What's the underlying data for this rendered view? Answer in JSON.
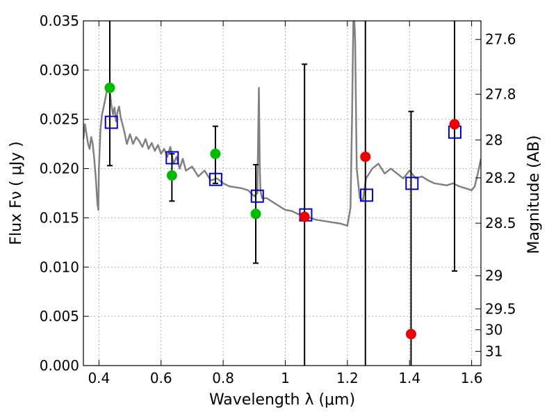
{
  "chart_data": {
    "type": "scatter",
    "title": "",
    "xlabel": "Wavelength  λ (μm)",
    "ylabel": "Flux  Fν  ( μJy )",
    "y2label": "Magnitude (AB)",
    "xlim": [
      0.35,
      1.63
    ],
    "ylim": [
      0.0,
      0.035
    ],
    "grid": true,
    "x_ticks": [
      {
        "value": 0.4,
        "label": "0.4"
      },
      {
        "value": 0.6,
        "label": "0.6"
      },
      {
        "value": 0.8,
        "label": "0.8"
      },
      {
        "value": 1.0,
        "label": "1"
      },
      {
        "value": 1.2,
        "label": "1.2"
      },
      {
        "value": 1.4,
        "label": "1.4"
      },
      {
        "value": 1.6,
        "label": "1.6"
      }
    ],
    "y_ticks": [
      {
        "value": 0.0,
        "label": "0.000"
      },
      {
        "value": 0.005,
        "label": "0.005"
      },
      {
        "value": 0.01,
        "label": "0.010"
      },
      {
        "value": 0.015,
        "label": "0.015"
      },
      {
        "value": 0.02,
        "label": "0.020"
      },
      {
        "value": 0.025,
        "label": "0.025"
      },
      {
        "value": 0.03,
        "label": "0.030"
      },
      {
        "value": 0.035,
        "label": "0.035"
      }
    ],
    "y2_ticks": [
      {
        "value": 27.6,
        "label": "27.6"
      },
      {
        "value": 27.8,
        "label": "27.8"
      },
      {
        "value": 28.0,
        "label": "28"
      },
      {
        "value": 28.2,
        "label": "28.2"
      },
      {
        "value": 28.5,
        "label": "28.5"
      },
      {
        "value": 29.0,
        "label": "29"
      },
      {
        "value": 29.5,
        "label": "29.5"
      },
      {
        "value": 30.0,
        "label": "30"
      },
      {
        "value": 31.0,
        "label": "31"
      }
    ],
    "colors": {
      "template": "#808080",
      "model_photometry": "#0000cc",
      "observed_green": "#00bb00",
      "observed_red": "#ee0000",
      "error_bar": "#000000",
      "grid": "#b0b0b0"
    },
    "template_spectrum": {
      "x": [
        0.35,
        0.355,
        0.36,
        0.365,
        0.37,
        0.375,
        0.38,
        0.385,
        0.39,
        0.395,
        0.398,
        0.4,
        0.405,
        0.41,
        0.415,
        0.42,
        0.425,
        0.43,
        0.435,
        0.44,
        0.445,
        0.45,
        0.455,
        0.46,
        0.465,
        0.47,
        0.48,
        0.49,
        0.5,
        0.51,
        0.52,
        0.53,
        0.54,
        0.55,
        0.56,
        0.57,
        0.58,
        0.59,
        0.6,
        0.61,
        0.62,
        0.63,
        0.64,
        0.65,
        0.66,
        0.67,
        0.68,
        0.7,
        0.72,
        0.74,
        0.76,
        0.78,
        0.8,
        0.82,
        0.84,
        0.86,
        0.88,
        0.9,
        0.91,
        0.915,
        0.918,
        0.92,
        0.925,
        0.94,
        0.96,
        0.98,
        1.0,
        1.02,
        1.04,
        1.06,
        1.08,
        1.1,
        1.12,
        1.14,
        1.16,
        1.18,
        1.2,
        1.21,
        1.215,
        1.22,
        1.225,
        1.228,
        1.23,
        1.24,
        1.25,
        1.26,
        1.28,
        1.3,
        1.32,
        1.34,
        1.36,
        1.38,
        1.4,
        1.42,
        1.44,
        1.46,
        1.48,
        1.5,
        1.52,
        1.54,
        1.56,
        1.58,
        1.6,
        1.61,
        1.62,
        1.63
      ],
      "y": [
        0.023,
        0.0245,
        0.0235,
        0.0225,
        0.022,
        0.0232,
        0.0225,
        0.021,
        0.019,
        0.0165,
        0.0158,
        0.02,
        0.024,
        0.0255,
        0.0262,
        0.027,
        0.0278,
        0.0285,
        0.0279,
        0.0265,
        0.0255,
        0.0262,
        0.0248,
        0.0258,
        0.0263,
        0.0252,
        0.024,
        0.0225,
        0.0235,
        0.0225,
        0.0232,
        0.0228,
        0.0222,
        0.023,
        0.022,
        0.0226,
        0.0218,
        0.0224,
        0.0215,
        0.022,
        0.0212,
        0.0222,
        0.0205,
        0.0212,
        0.02,
        0.021,
        0.0198,
        0.0202,
        0.0192,
        0.0198,
        0.0188,
        0.019,
        0.0185,
        0.0182,
        0.0181,
        0.018,
        0.0178,
        0.0172,
        0.0175,
        0.0282,
        0.02,
        0.0178,
        0.017,
        0.017,
        0.0166,
        0.0162,
        0.0158,
        0.0157,
        0.0154,
        0.0152,
        0.015,
        0.0148,
        0.0147,
        0.0146,
        0.0145,
        0.0144,
        0.0142,
        0.016,
        0.025,
        0.037,
        0.033,
        0.025,
        0.02,
        0.017,
        0.0168,
        0.019,
        0.02,
        0.0205,
        0.0195,
        0.02,
        0.0195,
        0.019,
        0.0198,
        0.019,
        0.0192,
        0.0188,
        0.0185,
        0.0184,
        0.0183,
        0.0185,
        0.0182,
        0.018,
        0.0178,
        0.0182,
        0.0195,
        0.021
      ]
    },
    "model_photometry": [
      {
        "x": 0.44,
        "y": 0.0247
      },
      {
        "x": 0.636,
        "y": 0.0211
      },
      {
        "x": 0.776,
        "y": 0.0189
      },
      {
        "x": 0.91,
        "y": 0.0172
      },
      {
        "x": 1.066,
        "y": 0.0153
      },
      {
        "x": 1.262,
        "y": 0.0173
      },
      {
        "x": 1.408,
        "y": 0.0185
      },
      {
        "x": 1.546,
        "y": 0.0237
      }
    ],
    "observed": [
      {
        "x": 0.435,
        "y": 0.0282,
        "err_low": 0.0203,
        "err_high": 0.035,
        "color": "green"
      },
      {
        "x": 0.635,
        "y": 0.0193,
        "err_low": 0.0167,
        "err_high": 0.0215,
        "color": "green"
      },
      {
        "x": 0.775,
        "y": 0.0215,
        "err_low": 0.0185,
        "err_high": 0.0243,
        "color": "green"
      },
      {
        "x": 0.905,
        "y": 0.0154,
        "err_low": 0.0104,
        "err_high": 0.0204,
        "color": "green"
      },
      {
        "x": 1.062,
        "y": 0.0151,
        "err_low": 0.0,
        "err_high": 0.0306,
        "color": "red"
      },
      {
        "x": 1.258,
        "y": 0.0212,
        "err_low": 0.0,
        "err_high": 0.035,
        "color": "red"
      },
      {
        "x": 1.405,
        "y": 0.0032,
        "err_low": 0.0,
        "err_high": 0.0258,
        "color": "red"
      },
      {
        "x": 1.545,
        "y": 0.0245,
        "err_low": 0.0096,
        "err_high": 0.035,
        "color": "red"
      }
    ]
  }
}
